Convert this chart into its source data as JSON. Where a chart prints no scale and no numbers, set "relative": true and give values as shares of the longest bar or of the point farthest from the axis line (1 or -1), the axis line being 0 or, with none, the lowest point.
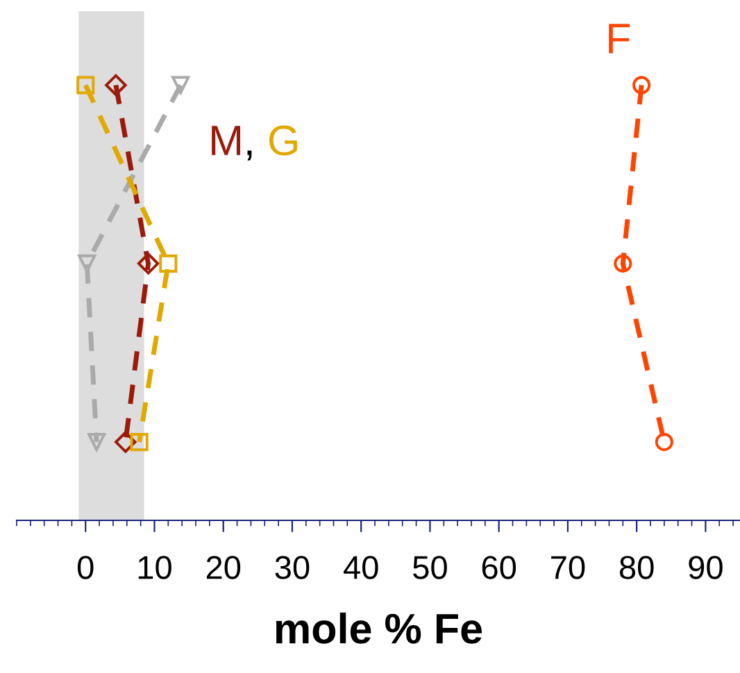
{
  "chart_data": {
    "type": "line",
    "relative": true,
    "xlabel": "mole % Fe",
    "xlim": [
      -10,
      95
    ],
    "xticks": [
      0,
      10,
      20,
      30,
      40,
      50,
      60,
      70,
      80,
      90
    ],
    "annotations": [
      ","
    ],
    "grid": false,
    "legend": false,
    "line_style": "dashed",
    "bands": [
      {
        "axis": "x",
        "from": -1,
        "to": 8.5,
        "color": "#dddddd"
      }
    ],
    "series": [
      {
        "x": [
          13.8,
          0.2,
          1.6
        ],
        "values": [
          1,
          0.59,
          0.18
        ],
        "color": "#aaaaaa",
        "marker": "triangle"
      },
      {
        "name": "M",
        "x": [
          4.4,
          9.1,
          5.8
        ],
        "values": [
          1,
          0.59,
          0.18
        ],
        "color": "#9b1a0a",
        "marker": "diamond"
      },
      {
        "name": "G",
        "x": [
          0.0,
          12.0,
          7.8
        ],
        "values": [
          1,
          0.59,
          0.18
        ],
        "color": "#e0a800",
        "marker": "square"
      },
      {
        "name": "F",
        "x": [
          80.7,
          78.0,
          84.0
        ],
        "values": [
          1,
          0.59,
          0.18
        ],
        "color": "#ff4400",
        "marker": "circle"
      }
    ]
  }
}
